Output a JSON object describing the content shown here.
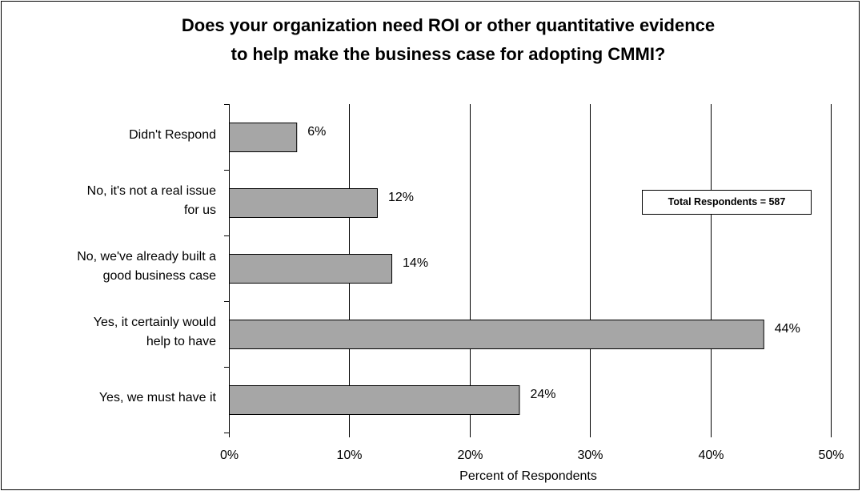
{
  "chart_data": {
    "type": "bar",
    "orientation": "horizontal",
    "title_lines": [
      "Does your organization need ROI or other quantitative evidence",
      "to help make the business case for adopting CMMI?"
    ],
    "categories": [
      [
        "Didn't Respond"
      ],
      [
        "No, it's not a real issue",
        "for us"
      ],
      [
        "No, we've already built a",
        "good business case"
      ],
      [
        "Yes, it certainly would",
        "help to have"
      ],
      [
        "Yes, we must have it"
      ]
    ],
    "values": [
      5.6,
      12.3,
      13.5,
      44.4,
      24.1
    ],
    "value_labels": [
      "6%",
      "12%",
      "14%",
      "44%",
      "24%"
    ],
    "xlabel": "Percent of Respondents",
    "xlim": [
      0,
      50
    ],
    "xticks": [
      "0%",
      "10%",
      "20%",
      "30%",
      "40%",
      "50%"
    ],
    "grid": true,
    "bar_color": "#a6a6a6",
    "annotation": "Total Respondents = 587"
  }
}
